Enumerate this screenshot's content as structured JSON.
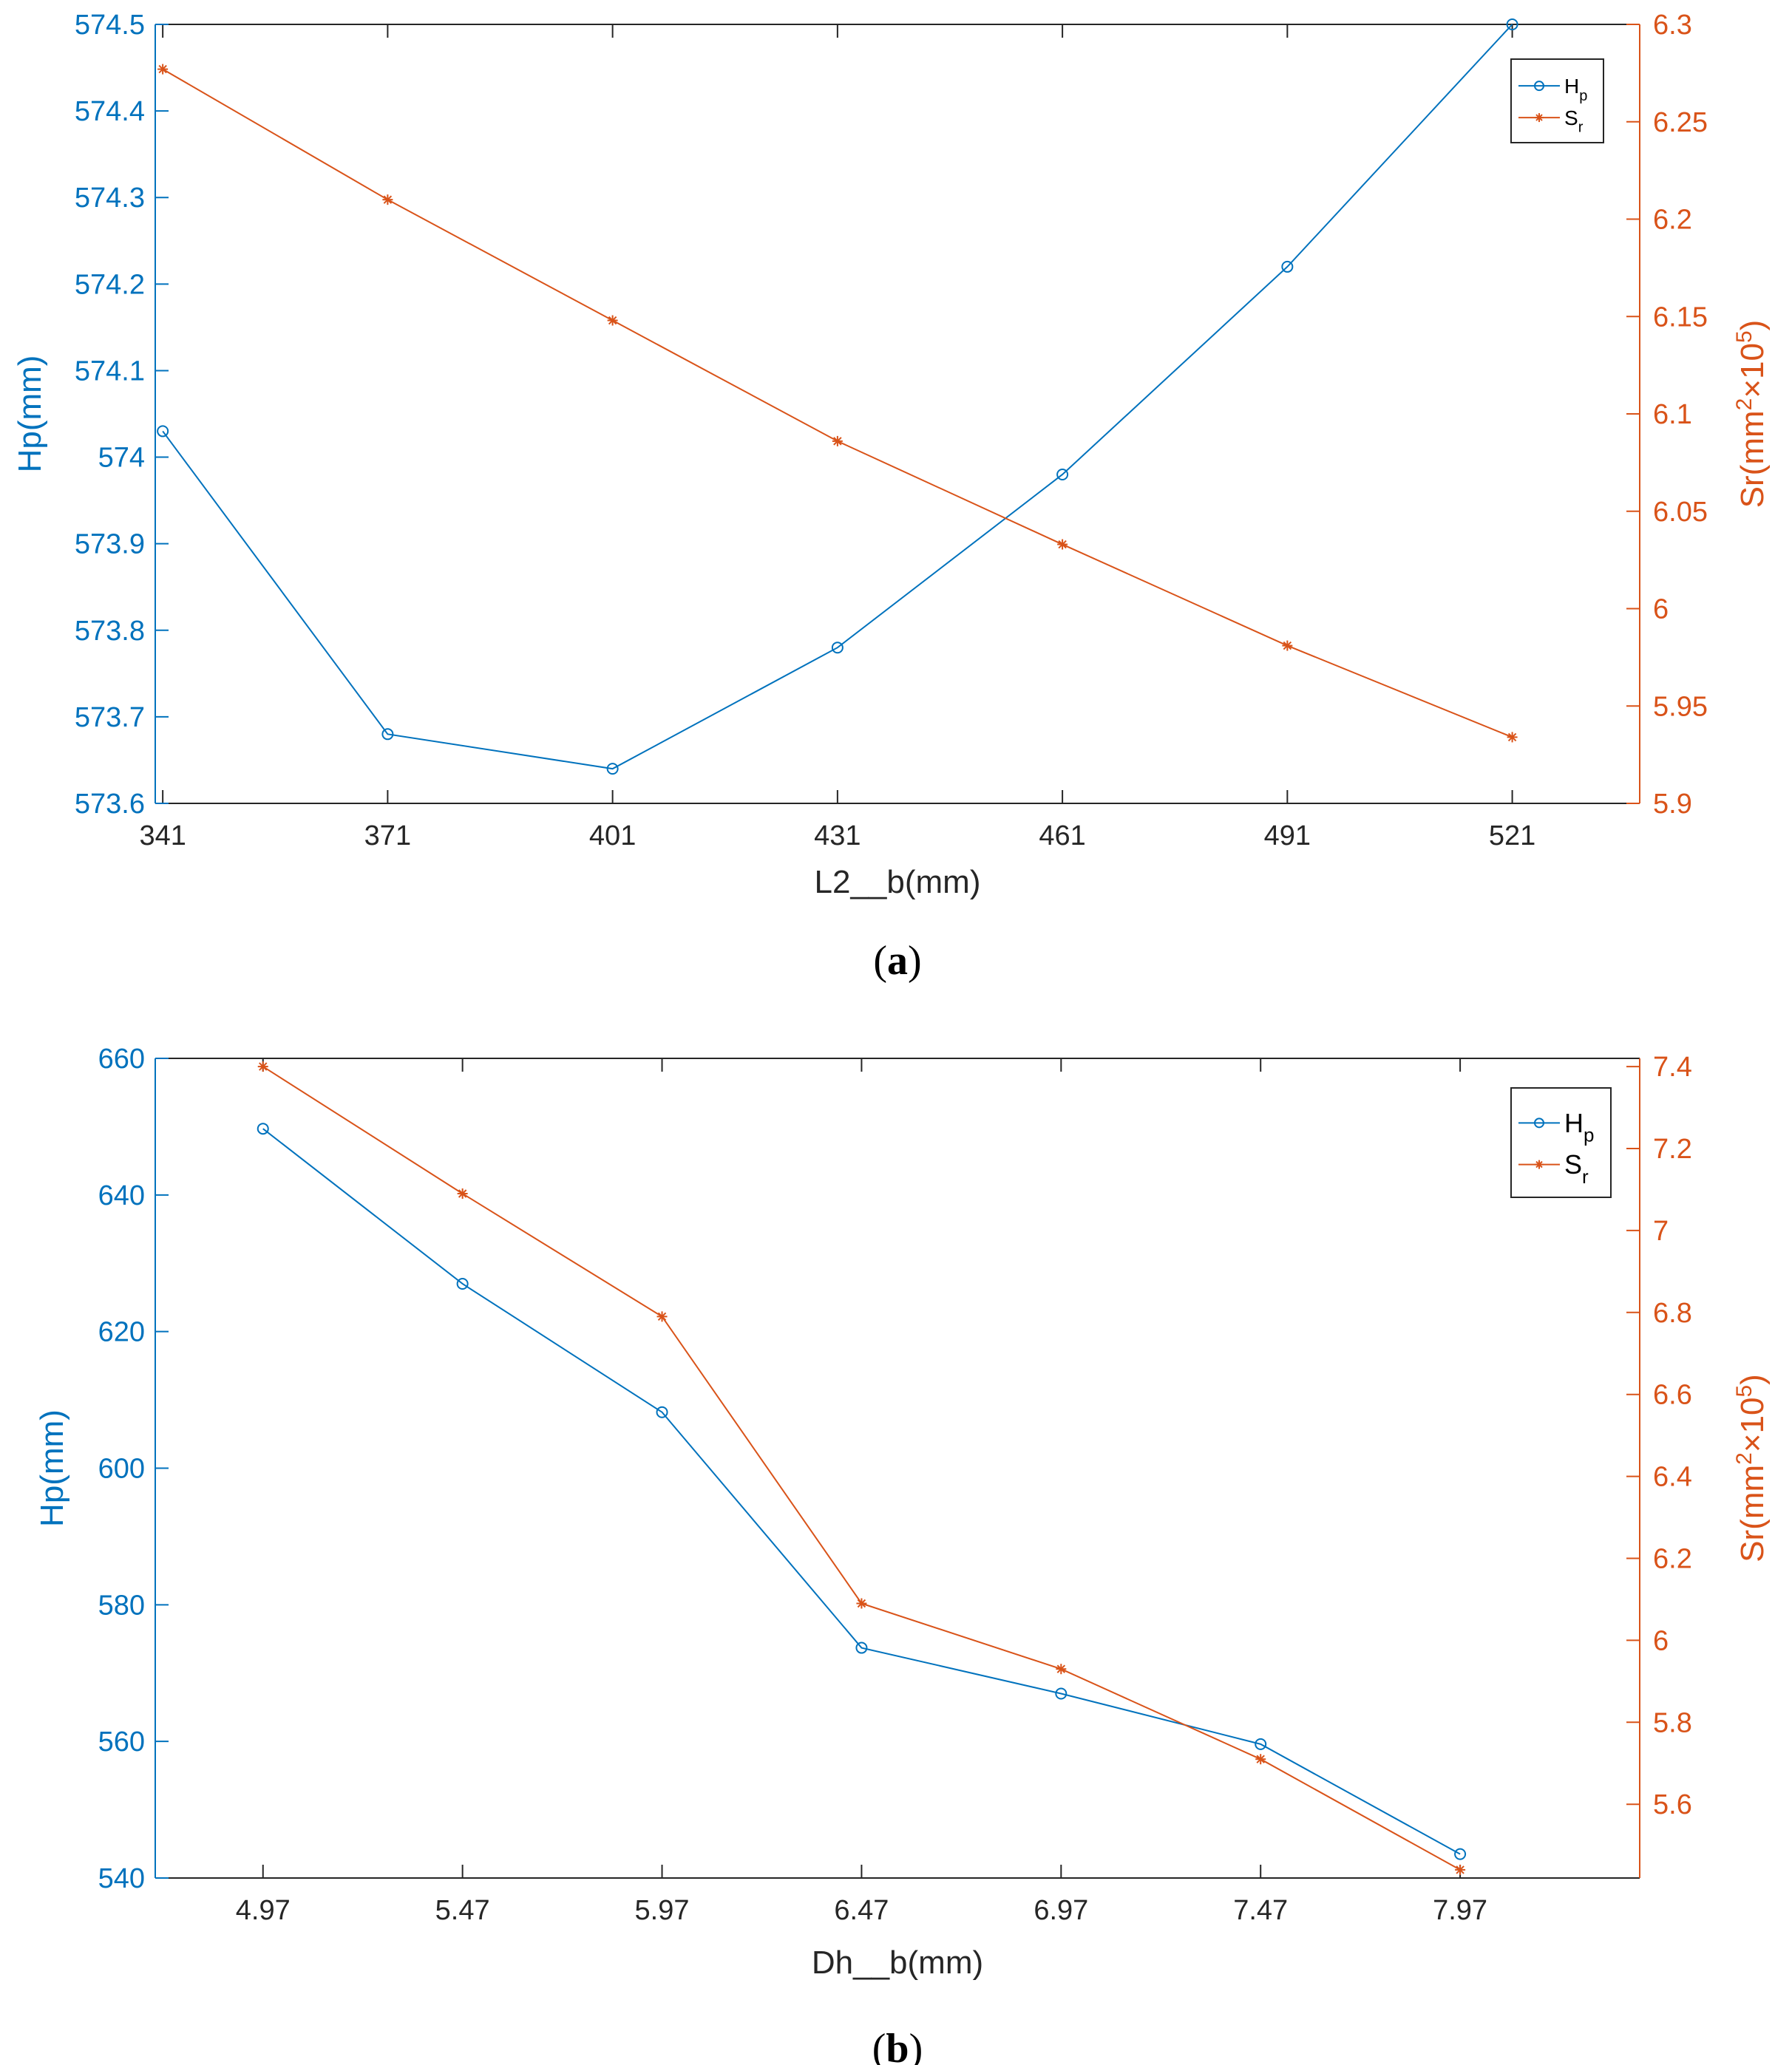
{
  "colors": {
    "hp": "#0072BD",
    "sr": "#D95319",
    "axis": "#262626"
  },
  "chart_data": [
    {
      "type": "line",
      "panel_label": "a",
      "xlabel": "L2__b(mm)",
      "ylabel_left": "Hp(mm)",
      "ylabel_right": "Sr(mm",
      "ylabel_right_sup": "2",
      "ylabel_right_mid": "×10",
      "ylabel_right_sup2": "5",
      "ylabel_right_end": ")",
      "xlim": [
        340,
        538
      ],
      "xticks": [
        341,
        371,
        401,
        431,
        461,
        491,
        521
      ],
      "xtick_labels": [
        "341",
        "371",
        "401",
        "431",
        "461",
        "491",
        "521"
      ],
      "ylim_left": [
        573.6,
        574.5
      ],
      "yticks_left": [
        573.6,
        573.7,
        573.8,
        573.9,
        574.0,
        574.1,
        574.2,
        574.3,
        574.4,
        574.5
      ],
      "ytick_labels_left": [
        "573.6",
        "573.7",
        "573.8",
        "573.9",
        "574",
        "574.1",
        "574.2",
        "574.3",
        "574.4",
        "574.5"
      ],
      "ylim_right": [
        5.9,
        6.3
      ],
      "yticks_right": [
        5.9,
        5.95,
        6.0,
        6.05,
        6.1,
        6.15,
        6.2,
        6.25,
        6.3
      ],
      "ytick_labels_right": [
        "5.9",
        "5.95",
        "6",
        "6.05",
        "6.1",
        "6.15",
        "6.2",
        "6.25",
        "6.3"
      ],
      "x": [
        341,
        371,
        401,
        431,
        461,
        491,
        521
      ],
      "series": [
        {
          "name": "H",
          "sub": "p",
          "axis": "left",
          "marker": "circle",
          "values": [
            574.03,
            573.68,
            573.64,
            573.78,
            573.98,
            574.22,
            574.5
          ]
        },
        {
          "name": "S",
          "sub": "r",
          "axis": "right",
          "marker": "star",
          "values": [
            6.277,
            6.21,
            6.148,
            6.086,
            6.033,
            5.981,
            5.934
          ]
        }
      ],
      "legend_position": "top-right"
    },
    {
      "type": "line",
      "panel_label": "b",
      "xlabel": "Dh__b(mm)",
      "ylabel_left": "Hp(mm)",
      "ylabel_right": "Sr(mm",
      "ylabel_right_sup": "2",
      "ylabel_right_mid": "×10",
      "ylabel_right_sup2": "5",
      "ylabel_right_end": ")",
      "xlim": [
        4.7,
        8.42
      ],
      "xticks": [
        4.97,
        5.47,
        5.97,
        6.47,
        6.97,
        7.47,
        7.97
      ],
      "xtick_labels": [
        "4.97",
        "5.47",
        "5.97",
        "6.47",
        "6.97",
        "7.47",
        "7.97"
      ],
      "ylim_left": [
        540,
        660
      ],
      "yticks_left": [
        540,
        560,
        580,
        600,
        620,
        640,
        660
      ],
      "ytick_labels_left": [
        "540",
        "560",
        "580",
        "600",
        "620",
        "640",
        "660"
      ],
      "ylim_right": [
        5.42,
        7.42
      ],
      "yticks_right": [
        5.6,
        5.8,
        6.0,
        6.2,
        6.4,
        6.6,
        6.8,
        7.0,
        7.2,
        7.4
      ],
      "ytick_labels_right": [
        "5.6",
        "5.8",
        "6",
        "6.2",
        "6.4",
        "6.6",
        "6.8",
        "7",
        "7.2",
        "7.4"
      ],
      "x": [
        4.97,
        5.47,
        5.97,
        6.47,
        6.97,
        7.47,
        7.97
      ],
      "series": [
        {
          "name": "H",
          "sub": "p",
          "axis": "left",
          "marker": "circle",
          "values": [
            649.7,
            627.0,
            608.2,
            573.7,
            567.0,
            559.6,
            543.5
          ]
        },
        {
          "name": "S",
          "sub": "r",
          "axis": "right",
          "marker": "star",
          "values": [
            7.4,
            7.09,
            6.79,
            6.09,
            5.93,
            5.71,
            5.44
          ]
        }
      ],
      "legend_position": "top-right"
    }
  ]
}
